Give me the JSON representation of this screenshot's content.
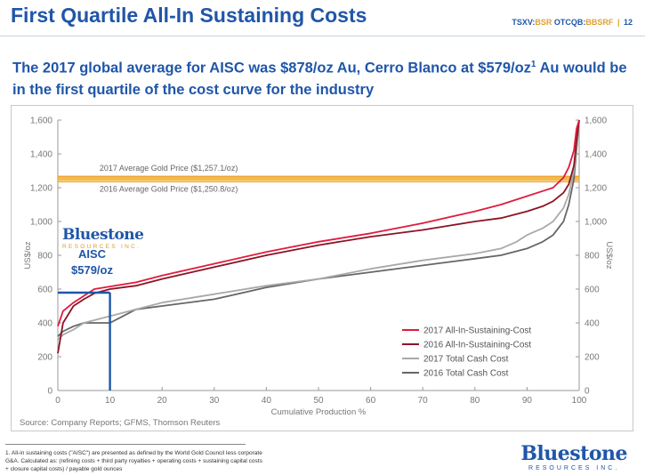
{
  "header": {
    "title": "First Quartile All-In Sustaining Costs",
    "ticker_a": "TSXV:",
    "ticker_b": "BSR",
    "ticker_c": " OTCQB:",
    "ticker_d": "BBSRF",
    "pipe": "|",
    "page_number": "12"
  },
  "headline": {
    "text": "The 2017 global average for AISC was $878/oz Au, Cerro Blanco at $579/oz",
    "superscript": "1",
    "text_tail": " Au would be in the first quartile of the cost curve for the industry"
  },
  "logo": {
    "word_a": "Blue",
    "word_b": "stone",
    "sub": "RESOURCES INC."
  },
  "annotation": {
    "line1": "AISC",
    "line2": "$579/oz"
  },
  "source": "Source: Company Reports; GFMS, Thomson Reuters",
  "footnote": "1. All-in sustaining costs (\"AISC\") are presented as defined by the World Gold Council less corporate G&A. Calculated as: (refining costs + third party royalties + operating costs + sustaining capital costs + closure capital costs) / payable gold ounces",
  "colors": {
    "aisc2017": "#e01b3c",
    "aisc2016": "#8c1424",
    "tcc2017": "#a9a9a9",
    "tcc2016": "#666666",
    "gold_band": "#f5b335",
    "marker": "#1f56a8"
  },
  "chart_data": {
    "type": "line",
    "xlabel": "Cumulative Production %",
    "ylabel": "US$/oz",
    "xlim": [
      0,
      100
    ],
    "ylim": [
      0,
      1600
    ],
    "x_ticks": [
      0,
      10,
      20,
      30,
      40,
      50,
      60,
      70,
      80,
      90,
      100
    ],
    "y_ticks": [
      0,
      200,
      400,
      600,
      800,
      1000,
      1200,
      1400,
      1600
    ],
    "y_tick_labels": [
      "0",
      "200",
      "400",
      "600",
      "800",
      "1,000",
      "1,200",
      "1,400",
      "1,600"
    ],
    "reference_lines": [
      {
        "label": "2017 Average Gold Price ($1,257.1/oz)",
        "value": 1257.1
      },
      {
        "label": "2016 Average Gold Price ($1,250.8/oz)",
        "value": 1250.8
      }
    ],
    "marker": {
      "x": 10,
      "y": 579
    },
    "legend_position": "bottom-right",
    "series": [
      {
        "name": "2017 All-In-Sustaining-Cost",
        "x": [
          0,
          1,
          3,
          5,
          7,
          10,
          15,
          20,
          30,
          40,
          50,
          60,
          70,
          80,
          85,
          90,
          93,
          95,
          97,
          98,
          99,
          99.5,
          100
        ],
        "y": [
          380,
          470,
          520,
          560,
          600,
          615,
          640,
          680,
          750,
          820,
          880,
          930,
          990,
          1060,
          1100,
          1150,
          1180,
          1200,
          1260,
          1320,
          1420,
          1550,
          1600
        ]
      },
      {
        "name": "2016 All-In-Sustaining-Cost",
        "x": [
          0,
          1,
          3,
          5,
          7,
          10,
          15,
          20,
          30,
          40,
          50,
          60,
          70,
          80,
          85,
          90,
          93,
          95,
          97,
          98,
          99,
          99.5,
          100
        ],
        "y": [
          220,
          400,
          500,
          540,
          575,
          600,
          620,
          660,
          730,
          800,
          860,
          910,
          950,
          1000,
          1020,
          1060,
          1090,
          1120,
          1170,
          1220,
          1330,
          1480,
          1600
        ]
      },
      {
        "name": "2017 Total Cash Cost",
        "x": [
          0,
          1,
          3,
          5,
          10,
          15,
          20,
          30,
          40,
          50,
          60,
          70,
          80,
          85,
          88,
          90,
          93,
          95,
          97,
          98,
          99,
          100
        ],
        "y": [
          300,
          330,
          360,
          400,
          440,
          480,
          520,
          570,
          620,
          660,
          720,
          770,
          810,
          840,
          880,
          920,
          960,
          1000,
          1080,
          1160,
          1300,
          1600
        ]
      },
      {
        "name": "2016 Total Cash Cost",
        "x": [
          0,
          1,
          3,
          5,
          10,
          15,
          20,
          30,
          40,
          50,
          60,
          70,
          80,
          85,
          90,
          93,
          95,
          97,
          98,
          99,
          100
        ],
        "y": [
          320,
          350,
          380,
          400,
          400,
          480,
          500,
          540,
          610,
          660,
          700,
          740,
          780,
          800,
          840,
          880,
          920,
          1000,
          1100,
          1250,
          1600
        ]
      }
    ]
  }
}
